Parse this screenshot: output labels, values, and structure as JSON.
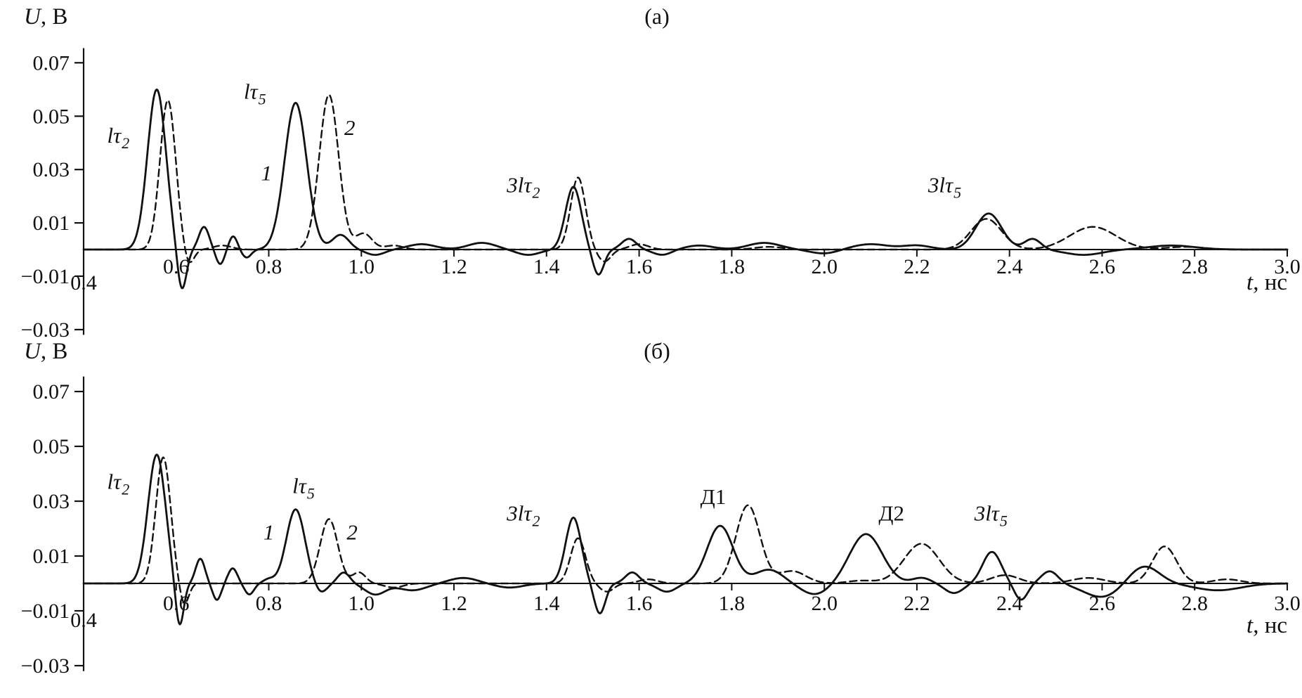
{
  "figure": {
    "background": "#ffffff",
    "curve_color": "#111111",
    "panels_count": 2
  },
  "chart_data": [
    {
      "id": "panel-a",
      "type": "line",
      "title": "(а)",
      "x_axis": {
        "label_var": "t",
        "label_rest": ", нс",
        "range": [
          0.4,
          3.0
        ],
        "ticks": [
          0.4,
          0.6,
          0.8,
          1.0,
          1.2,
          1.4,
          1.6,
          1.8,
          2.0,
          2.2,
          2.4,
          2.6,
          2.8,
          3.0
        ],
        "tick_labels": [
          "0.4",
          "0.6",
          "0.8",
          "1.0",
          "1.2",
          "1.4",
          "1.6",
          "1.8",
          "2.0",
          "2.2",
          "2.4",
          "2.6",
          "2.8",
          "3.0"
        ]
      },
      "y_axis": {
        "label_var": "U",
        "label_rest": ", В",
        "range": [
          -0.035,
          0.075
        ],
        "ticks": [
          0.07,
          0.05,
          0.03,
          0.01,
          -0.01,
          -0.03
        ],
        "tick_labels": [
          "0.07",
          "0.05",
          "0.03",
          "0.01",
          "−0.01",
          "−0.03"
        ]
      },
      "peaks_format": "[center_t_ns, amplitude_V, sigma_ns]",
      "series": [
        {
          "name": "1",
          "style": "solid",
          "color": "#111111",
          "peaks": [
            [
              0.558,
              0.06,
              0.02
            ],
            [
              0.612,
              -0.016,
              0.01
            ],
            [
              0.66,
              0.0085,
              0.011
            ],
            [
              0.695,
              -0.0055,
              0.009
            ],
            [
              0.723,
              0.005,
              0.009
            ],
            [
              0.752,
              -0.003,
              0.01
            ],
            [
              0.858,
              0.055,
              0.024
            ],
            [
              0.955,
              0.0055,
              0.018
            ],
            [
              1.03,
              -0.002,
              0.02
            ],
            [
              1.13,
              0.002,
              0.03
            ],
            [
              1.26,
              0.0025,
              0.03
            ],
            [
              1.36,
              -0.002,
              0.025
            ],
            [
              1.458,
              0.0235,
              0.017
            ],
            [
              1.512,
              -0.0095,
              0.012
            ],
            [
              1.578,
              0.004,
              0.016
            ],
            [
              1.65,
              -0.002,
              0.02
            ],
            [
              1.73,
              0.0015,
              0.03
            ],
            [
              1.87,
              0.0025,
              0.035
            ],
            [
              2.0,
              -0.0015,
              0.03
            ],
            [
              2.1,
              0.002,
              0.04
            ],
            [
              2.2,
              0.0015,
              0.03
            ],
            [
              2.355,
              0.0135,
              0.028
            ],
            [
              2.45,
              0.004,
              0.018
            ],
            [
              2.56,
              -0.002,
              0.04
            ],
            [
              2.75,
              0.0015,
              0.05
            ]
          ]
        },
        {
          "name": "2",
          "style": "dashed",
          "color": "#111111",
          "peaks": [
            [
              0.582,
              0.056,
              0.017
            ],
            [
              0.627,
              -0.006,
              0.011
            ],
            [
              0.7,
              0.0015,
              0.02
            ],
            [
              0.93,
              0.058,
              0.021
            ],
            [
              1.005,
              0.006,
              0.018
            ],
            [
              1.07,
              0.0015,
              0.02
            ],
            [
              1.468,
              0.027,
              0.016
            ],
            [
              1.525,
              -0.0045,
              0.014
            ],
            [
              1.6,
              0.002,
              0.02
            ],
            [
              1.88,
              0.001,
              0.03
            ],
            [
              2.35,
              0.0115,
              0.033
            ],
            [
              2.58,
              0.0085,
              0.05
            ],
            [
              2.78,
              0.001,
              0.04
            ]
          ]
        }
      ],
      "peak_labels": [
        {
          "main": "lτ",
          "sub": "2",
          "x": 0.475,
          "y": 0.04,
          "italic": true
        },
        {
          "main": "lτ",
          "sub": "5",
          "x": 0.77,
          "y": 0.0565,
          "italic": true
        },
        {
          "main": "1",
          "sub": "",
          "x": 0.795,
          "y": 0.026,
          "italic": true
        },
        {
          "main": "2",
          "sub": "",
          "x": 0.975,
          "y": 0.043,
          "italic": true
        },
        {
          "main": "3lτ",
          "sub": "2",
          "x": 1.35,
          "y": 0.0215,
          "italic": true
        },
        {
          "main": "3lτ",
          "sub": "5",
          "x": 2.26,
          "y": 0.0215,
          "italic": true
        }
      ]
    },
    {
      "id": "panel-b",
      "type": "line",
      "title": "(б)",
      "x_axis": {
        "label_var": "t",
        "label_rest": ", нс",
        "range": [
          0.4,
          3.0
        ],
        "ticks": [
          0.4,
          0.6,
          0.8,
          1.0,
          1.2,
          1.4,
          1.6,
          1.8,
          2.0,
          2.2,
          2.4,
          2.6,
          2.8,
          3.0
        ],
        "tick_labels": [
          "0.4",
          "0.6",
          "0.8",
          "1.0",
          "1.2",
          "1.4",
          "1.6",
          "1.8",
          "2.0",
          "2.2",
          "2.4",
          "2.6",
          "2.8",
          "3.0"
        ]
      },
      "y_axis": {
        "label_var": "U",
        "label_rest": ", В",
        "range": [
          -0.035,
          0.075
        ],
        "ticks": [
          0.07,
          0.05,
          0.03,
          0.01,
          -0.01,
          -0.03
        ],
        "tick_labels": [
          "0.07",
          "0.05",
          "0.03",
          "0.01",
          "−0.01",
          "−0.03"
        ]
      },
      "peaks_format": "[center_t_ns, amplitude_V, sigma_ns]",
      "series": [
        {
          "name": "1",
          "style": "solid",
          "color": "#111111",
          "peaks": [
            [
              0.558,
              0.047,
              0.019
            ],
            [
              0.607,
              -0.0165,
              0.009
            ],
            [
              0.652,
              0.009,
              0.01
            ],
            [
              0.688,
              -0.006,
              0.009
            ],
            [
              0.722,
              0.0055,
              0.01
            ],
            [
              0.758,
              -0.004,
              0.01
            ],
            [
              0.8,
              0.0015,
              0.012
            ],
            [
              0.858,
              0.027,
              0.02
            ],
            [
              0.912,
              -0.0035,
              0.013
            ],
            [
              0.962,
              0.004,
              0.013
            ],
            [
              1.03,
              -0.004,
              0.022
            ],
            [
              1.11,
              -0.0025,
              0.03
            ],
            [
              1.22,
              0.002,
              0.03
            ],
            [
              1.32,
              -0.0015,
              0.03
            ],
            [
              1.458,
              0.024,
              0.017
            ],
            [
              1.515,
              -0.011,
              0.012
            ],
            [
              1.585,
              0.004,
              0.015
            ],
            [
              1.66,
              -0.003,
              0.02
            ],
            [
              1.775,
              0.021,
              0.028
            ],
            [
              1.88,
              0.005,
              0.03
            ],
            [
              1.98,
              -0.004,
              0.03
            ],
            [
              2.09,
              0.018,
              0.035
            ],
            [
              2.21,
              0.002,
              0.02
            ],
            [
              2.28,
              -0.0035,
              0.02
            ],
            [
              2.362,
              0.0115,
              0.02
            ],
            [
              2.425,
              -0.006,
              0.014
            ],
            [
              2.487,
              0.0045,
              0.018
            ],
            [
              2.6,
              -0.005,
              0.04
            ],
            [
              2.69,
              0.0065,
              0.033
            ],
            [
              2.85,
              -0.0025,
              0.05
            ]
          ]
        },
        {
          "name": "2",
          "style": "dashed",
          "color": "#111111",
          "peaks": [
            [
              0.572,
              0.046,
              0.016
            ],
            [
              0.617,
              -0.008,
              0.01
            ],
            [
              0.93,
              0.0235,
              0.019
            ],
            [
              0.995,
              0.004,
              0.014
            ],
            [
              1.07,
              -0.0015,
              0.02
            ],
            [
              1.468,
              0.0165,
              0.016
            ],
            [
              1.53,
              -0.003,
              0.015
            ],
            [
              1.62,
              0.0015,
              0.02
            ],
            [
              1.835,
              0.0285,
              0.026
            ],
            [
              1.93,
              0.0045,
              0.03
            ],
            [
              2.08,
              0.001,
              0.03
            ],
            [
              2.21,
              0.0145,
              0.038
            ],
            [
              2.39,
              0.003,
              0.03
            ],
            [
              2.57,
              0.002,
              0.035
            ],
            [
              2.735,
              0.0135,
              0.026
            ],
            [
              2.87,
              0.0015,
              0.03
            ]
          ]
        }
      ],
      "peak_labels": [
        {
          "main": "lτ",
          "sub": "2",
          "x": 0.475,
          "y": 0.0345,
          "italic": true
        },
        {
          "main": "lτ",
          "sub": "5",
          "x": 0.875,
          "y": 0.033,
          "italic": true
        },
        {
          "main": "1",
          "sub": "",
          "x": 0.8,
          "y": 0.016,
          "italic": true
        },
        {
          "main": "2",
          "sub": "",
          "x": 0.98,
          "y": 0.016,
          "italic": true
        },
        {
          "main": "3lτ",
          "sub": "2",
          "x": 1.35,
          "y": 0.023,
          "italic": true
        },
        {
          "main": "Д1",
          "sub": "",
          "x": 1.76,
          "y": 0.029,
          "italic": false
        },
        {
          "main": "Д2",
          "sub": "",
          "x": 2.145,
          "y": 0.023,
          "italic": false
        },
        {
          "main": "3lτ",
          "sub": "5",
          "x": 2.36,
          "y": 0.023,
          "italic": true
        }
      ]
    }
  ]
}
